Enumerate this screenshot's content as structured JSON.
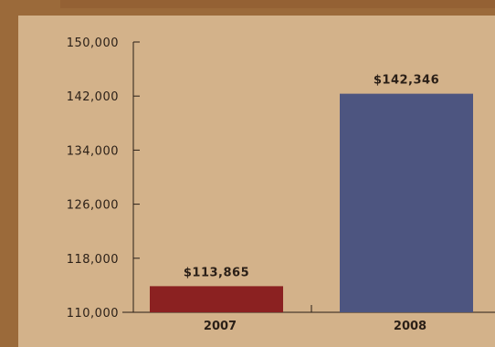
{
  "chart_data": {
    "type": "bar",
    "categories": [
      "2007",
      "2008"
    ],
    "values": [
      113865,
      142346
    ],
    "data_labels": [
      "$113,865",
      "$142,346"
    ],
    "colors": [
      "#8b2121",
      "#4d5580"
    ],
    "title": "",
    "xlabel": "",
    "ylabel": "",
    "ylim": [
      110000,
      150000
    ],
    "yticks": [
      110000,
      118000,
      126000,
      134000,
      142000,
      150000
    ],
    "ytick_labels": [
      "110,000",
      "118,000",
      "126,000",
      "134,000",
      "142,000",
      "150,000"
    ],
    "grid": false,
    "legend": "none"
  },
  "colors": {
    "frame": "#9b6a3a",
    "panel": "#d3b28a",
    "axis": "#2a1f17"
  }
}
